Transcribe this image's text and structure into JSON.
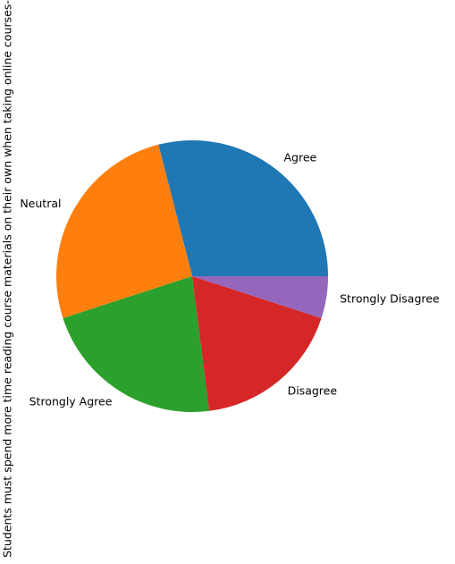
{
  "chart_data": {
    "type": "pie",
    "ylabel": "Students must spend more time reading course materials on their own when taking online courses-",
    "categories": [
      "Agree",
      "Neutral",
      "Strongly Agree",
      "Disagree",
      "Strongly Disagree"
    ],
    "values": [
      29,
      26,
      22,
      18,
      5
    ],
    "colors": [
      "#1f77b4",
      "#ff7f0e",
      "#2ca02c",
      "#d62728",
      "#9467bd"
    ],
    "start_angle_deg": 0,
    "direction": "counterclockwise"
  }
}
